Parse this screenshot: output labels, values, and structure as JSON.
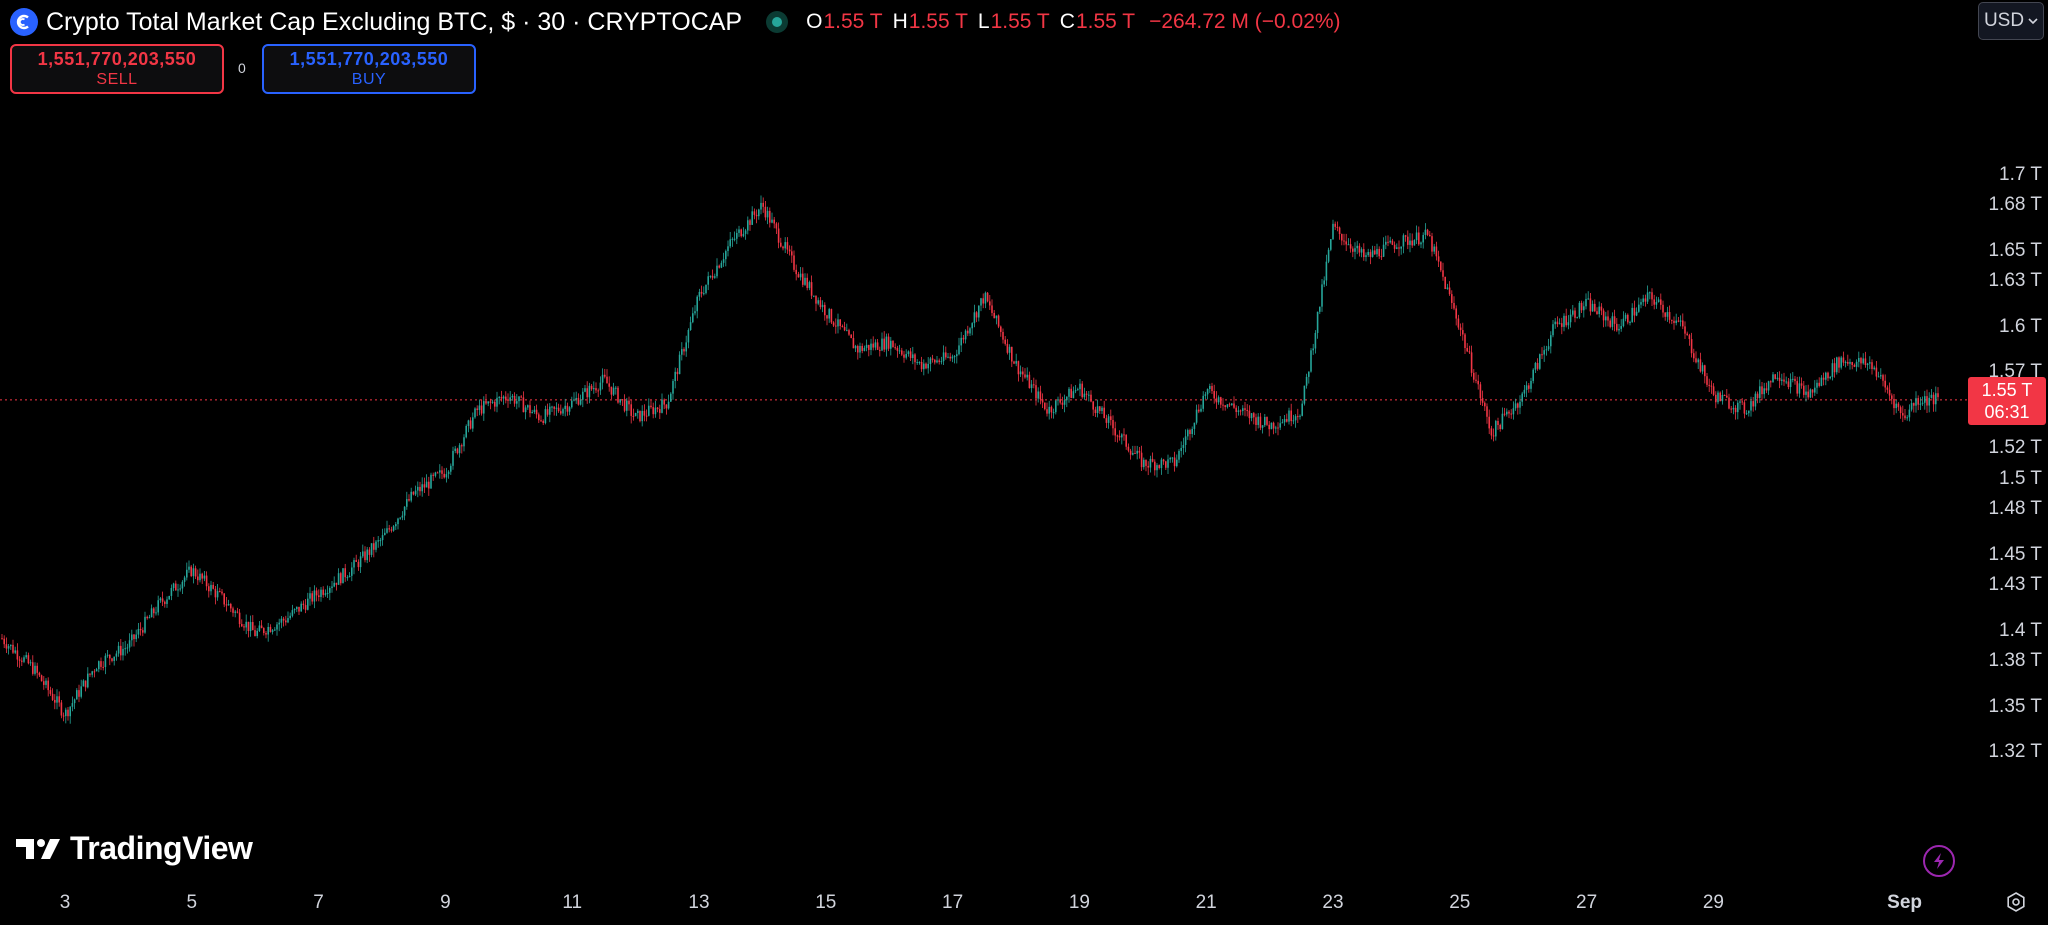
{
  "header": {
    "title": "Crypto Total Market Cap Excluding BTC, $ · 30 · CRYPTOCAP",
    "ohlc": {
      "o_label": "O",
      "o": "1.55 T",
      "h_label": "H",
      "h": "1.55 T",
      "l_label": "L",
      "l": "1.55 T",
      "c_label": "C",
      "c": "1.55 T",
      "change": "−264.72 M (−0.02%)"
    }
  },
  "trade": {
    "sell_price": "1,551,770,203,550",
    "sell_label": "SELL",
    "buy_price": "1,551,770,203,550",
    "buy_label": "BUY",
    "spread": "0"
  },
  "currency": "USD",
  "price_tag": {
    "price": "1.55 T",
    "countdown": "06:31"
  },
  "branding": {
    "name": "TradingView"
  },
  "icons": {
    "symbol": "coin-logo-icon",
    "status": "market-status-icon",
    "bolt": "lightning-icon",
    "settings": "settings-gear-icon",
    "dropdown": "chevron-down-icon"
  },
  "colors": {
    "up": "#26a69a",
    "down": "#f23645",
    "accent": "#2962ff",
    "background": "#000000"
  },
  "chart_data": {
    "type": "candlestick",
    "y_unit": "T",
    "ylim": [
      1.32,
      1.73
    ],
    "y_ticks": [
      "1.7 T",
      "1.68 T",
      "1.65 T",
      "1.63 T",
      "1.6 T",
      "1.57 T",
      "1.55 T",
      "1.52 T",
      "1.5 T",
      "1.48 T",
      "1.45 T",
      "1.43 T",
      "1.4 T",
      "1.38 T",
      "1.35 T",
      "1.32 T"
    ],
    "x_ticks": [
      "3",
      "5",
      "7",
      "9",
      "11",
      "13",
      "15",
      "17",
      "19",
      "21",
      "23",
      "25",
      "27",
      "29",
      "Sep"
    ],
    "last_price": 1.5518,
    "series": [
      {
        "x": [
          2,
          2.5,
          3,
          3.5,
          4,
          4.5,
          5,
          5.5,
          6,
          6.5,
          7,
          7.5,
          8,
          8.5,
          9,
          9.5,
          10,
          10.5,
          11,
          11.5,
          12,
          12.5,
          13,
          13.5,
          14,
          14.5,
          15,
          15.5,
          16,
          16.5,
          17,
          17.5,
          18,
          18.5,
          19,
          19.5,
          20,
          20.5,
          21,
          21.5,
          22,
          22.5,
          23,
          23.5,
          24,
          24.5,
          25,
          25.5,
          26,
          26.5,
          27,
          27.5,
          28,
          28.5,
          29,
          29.5,
          30,
          30.5,
          31,
          31.5,
          32,
          32.2
        ],
        "values": [
          1.395,
          1.375,
          1.345,
          1.378,
          1.39,
          1.418,
          1.44,
          1.42,
          1.398,
          1.408,
          1.425,
          1.44,
          1.46,
          1.49,
          1.505,
          1.545,
          1.555,
          1.54,
          1.55,
          1.565,
          1.54,
          1.55,
          1.62,
          1.655,
          1.68,
          1.64,
          1.61,
          1.585,
          1.59,
          1.575,
          1.58,
          1.62,
          1.575,
          1.545,
          1.56,
          1.535,
          1.51,
          1.51,
          1.558,
          1.545,
          1.535,
          1.545,
          1.665,
          1.645,
          1.655,
          1.66,
          1.6,
          1.53,
          1.555,
          1.6,
          1.615,
          1.6,
          1.62,
          1.6,
          1.555,
          1.545,
          1.57,
          1.555,
          1.578,
          1.575,
          1.54,
          1.552
        ]
      }
    ]
  }
}
